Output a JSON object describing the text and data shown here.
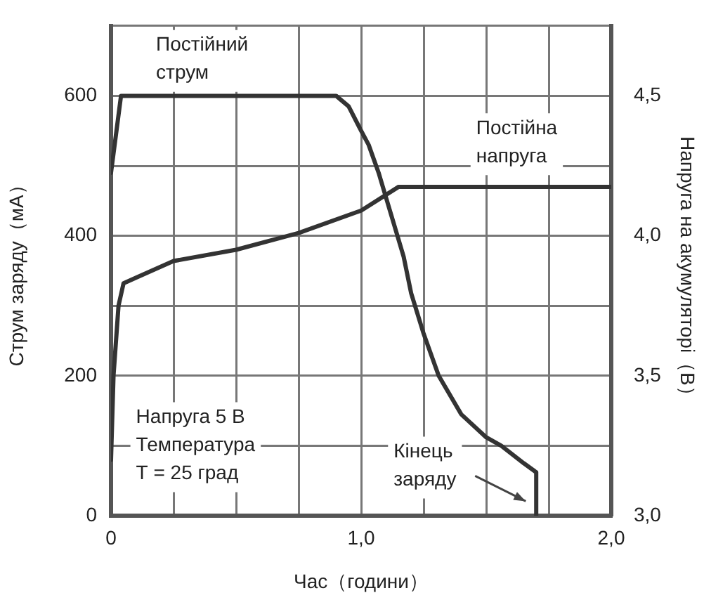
{
  "chart_data": {
    "type": "line",
    "xlabel": "Час（години）",
    "ylabel": "Струм заряду（мА）",
    "y2label": "Напруга на акумуляторі（В）",
    "xlim": [
      0,
      2
    ],
    "xticks": [
      0,
      {
        "value": 0.25,
        "label": null
      },
      {
        "value": 0.5,
        "label": null
      },
      {
        "value": 0.75,
        "label": null
      },
      {
        "value": 1,
        "label": "1,0"
      },
      {
        "value": 1.25,
        "label": null
      },
      {
        "value": 1.5,
        "label": null
      },
      {
        "value": 1.75,
        "label": null
      },
      {
        "value": 2,
        "label": "2,0"
      }
    ],
    "ylim": [
      0,
      700
    ],
    "yticks": [
      0,
      {
        "value": 100,
        "label": null
      },
      200,
      {
        "value": 300,
        "label": null
      },
      400,
      {
        "value": 500,
        "label": null
      },
      600,
      {
        "value": 700,
        "label": null
      }
    ],
    "y2lim": [
      3,
      4.75
    ],
    "y2ticks": [
      {
        "value": 3,
        "label": "3,0"
      },
      {
        "value": 3.5,
        "label": "3,5"
      },
      {
        "value": 4,
        "label": "4,0"
      },
      {
        "value": 4.5,
        "label": "4,5"
      }
    ],
    "grid": true,
    "legend": false,
    "marker": "none",
    "line_style": "solid",
    "series": [
      {
        "color": "#333333",
        "x": [
          0,
          0.04,
          0.9,
          0.95,
          1.0,
          1.03,
          1.07,
          1.12,
          1.17,
          1.2,
          1.25,
          1.31,
          1.4,
          1.5,
          1.56,
          1.65,
          1.7,
          1.7
        ],
        "values": [
          490,
          600,
          600,
          585,
          550,
          530,
          490,
          430,
          370,
          318,
          260,
          200,
          145,
          112,
          100,
          75,
          62,
          0
        ]
      },
      {
        "color": "#333333",
        "axis": "y2",
        "x": [
          0,
          0.01,
          0.03,
          0.05,
          0.1,
          0.25,
          0.5,
          0.75,
          1.0,
          1.15,
          2.0
        ],
        "values": [
          3.2,
          3.5,
          3.75,
          3.83,
          3.85,
          3.91,
          3.95,
          4.01,
          4.09,
          4.175,
          4.175
        ]
      }
    ],
    "annotations": [
      "Постійний\nструм",
      "Постійна\nнапруга",
      "Напруга 5 В\nТемпература\nТ = 25 град",
      "Кінець\nзаряду"
    ]
  }
}
